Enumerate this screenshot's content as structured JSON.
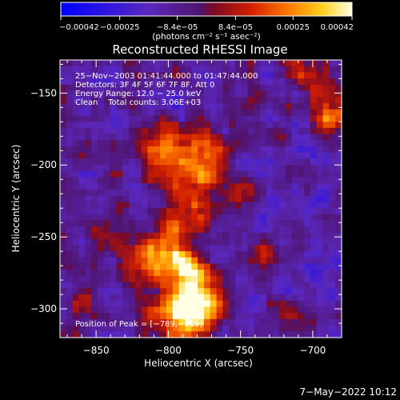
{
  "chart_data": {
    "type": "heatmap",
    "title": "Reconstructed RHESSI Image",
    "xlabel": "Heliocentric X (arcsec)",
    "ylabel": "Heliocentric Y (arcsec)",
    "xlim": [
      -875,
      -680
    ],
    "ylim": [
      -320,
      -127
    ],
    "x_ticks": [
      -850,
      -800,
      -750,
      -700
    ],
    "y_ticks": [
      -150,
      -200,
      -250,
      -300
    ],
    "x_tick_labels": [
      "−850",
      "−800",
      "−750",
      "−700"
    ],
    "y_tick_labels": [
      "−150",
      "−200",
      "−250",
      "−300"
    ],
    "colorbar": {
      "range": [
        -0.00042,
        0.00042
      ],
      "tick_values": [
        -0.00042,
        -0.00025,
        -8.4e-05,
        8.4e-05,
        0.00025,
        0.00042
      ],
      "tick_labels": [
        "−0.00042",
        "−0.00025",
        "−8.4e−05",
        "8.4e−05",
        "0.00025",
        "0.00042"
      ],
      "units": "(photons cm⁻² s⁻¹ asec⁻²)"
    },
    "annotations": [
      "25−Nov−2003 01:41:44.000 to 01:47:44.000",
      "Detectors: 3F 4F 5F 6F 7F 8F, Att 0",
      "Energy Range: 12.0 − 25.0 keV",
      "Clean    Total counts: 3.06E+03"
    ],
    "peak_label": "Position of Peak = [−789,−319]",
    "footer_date": "7−May−2022 10:12",
    "sources": [
      {
        "x": -790,
        "y": -305,
        "value": 0.00042,
        "sigma": 14
      },
      {
        "x": -778,
        "y": -290,
        "value": 0.00037,
        "sigma": 12
      },
      {
        "x": -793,
        "y": -272,
        "value": 0.0003,
        "sigma": 13
      },
      {
        "x": -800,
        "y": -255,
        "value": 0.00024,
        "sigma": 12
      },
      {
        "x": -818,
        "y": -268,
        "value": 0.00022,
        "sigma": 10
      },
      {
        "x": -785,
        "y": -232,
        "value": 0.00022,
        "sigma": 12
      },
      {
        "x": -787,
        "y": -205,
        "value": 0.00026,
        "sigma": 13
      },
      {
        "x": -803,
        "y": -188,
        "value": 0.00024,
        "sigma": 11
      },
      {
        "x": -775,
        "y": -180,
        "value": 0.00022,
        "sigma": 10
      },
      {
        "x": -768,
        "y": -210,
        "value": 0.0002,
        "sigma": 9
      },
      {
        "x": -695,
        "y": -148,
        "value": 0.0003,
        "sigma": 9
      },
      {
        "x": -690,
        "y": -168,
        "value": 0.00026,
        "sigma": 8
      },
      {
        "x": -705,
        "y": -130,
        "value": 0.0002,
        "sigma": 8
      },
      {
        "x": -738,
        "y": -262,
        "value": 0.00018,
        "sigma": 9
      },
      {
        "x": -715,
        "y": -300,
        "value": 0.00017,
        "sigma": 8
      },
      {
        "x": -858,
        "y": -295,
        "value": 0.00016,
        "sigma": 8
      },
      {
        "x": -842,
        "y": -250,
        "value": 0.00012,
        "sigma": 8
      },
      {
        "x": -745,
        "y": -220,
        "value": 0.00016,
        "sigma": 8
      },
      {
        "x": -752,
        "y": -160,
        "value": 0.0001,
        "sigma": 8
      }
    ],
    "background_level": -0.00011,
    "noise_level": 0.00011
  }
}
